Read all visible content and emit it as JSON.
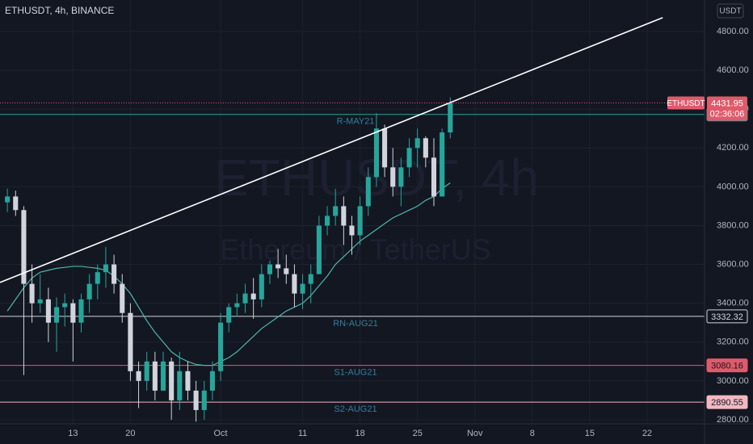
{
  "header": {
    "title": "ETHUSDT, 4h, BINANCE",
    "currency": "USDT"
  },
  "chart_data": {
    "type": "candlestick",
    "watermark": "ETHUSDT, 4h",
    "watermark_subtitle": "Ethereum / TetherUS",
    "up_color": "#26a69a",
    "down_color": "#d1d4dc",
    "x": [
      248,
      249,
      250,
      251,
      252,
      253,
      254,
      255,
      256,
      257,
      258,
      259,
      260,
      261,
      262,
      263,
      264,
      265,
      266,
      267,
      268,
      269,
      270,
      271,
      272,
      273,
      274,
      275,
      276,
      277,
      278,
      279,
      280,
      281,
      282,
      283,
      284,
      285,
      286,
      287,
      288,
      289,
      290,
      291,
      292,
      293,
      294,
      295,
      296,
      297,
      298,
      299,
      300,
      301,
      302
    ],
    "open": [
      3920,
      3950,
      3880,
      3500,
      3400,
      3420,
      3300,
      3380,
      3400,
      3300,
      3420,
      3500,
      3560,
      3600,
      3500,
      3350,
      3050,
      3000,
      3100,
      2950,
      3100,
      2900,
      3050,
      2950,
      2850,
      2950,
      3050,
      3300,
      3380,
      3400,
      3450,
      3420,
      3550,
      3600,
      3580,
      3550,
      3450,
      3500,
      3550,
      3800,
      3850,
      3900,
      3800,
      3750,
      3900,
      4050,
      4300,
      4100,
      4000,
      4100,
      4200,
      4250,
      4150,
      3950,
      4280
    ],
    "high": [
      3990,
      3980,
      3900,
      3600,
      3550,
      3480,
      3430,
      3450,
      3420,
      3450,
      3550,
      3600,
      3690,
      3650,
      3550,
      3400,
      3100,
      3150,
      3150,
      3150,
      3120,
      3150,
      3100,
      3000,
      3000,
      3100,
      3350,
      3400,
      3450,
      3500,
      3530,
      3600,
      3620,
      3680,
      3650,
      3600,
      3550,
      3600,
      3850,
      3900,
      3990,
      3950,
      3850,
      3950,
      4100,
      4380,
      4320,
      4200,
      4150,
      4250,
      4300,
      4260,
      4250,
      4300,
      4460
    ],
    "low": [
      3870,
      3850,
      3030,
      3300,
      3350,
      3200,
      3150,
      3280,
      3100,
      3250,
      3350,
      3420,
      3480,
      3450,
      3300,
      3000,
      2860,
      2950,
      2900,
      2950,
      2800,
      2850,
      2900,
      2790,
      2800,
      2900,
      3000,
      3250,
      3330,
      3350,
      3320,
      3380,
      3500,
      3530,
      3500,
      3380,
      3370,
      3400,
      3550,
      3750,
      3800,
      3700,
      3650,
      3700,
      3850,
      4000,
      4050,
      3950,
      3900,
      4050,
      4100,
      4100,
      3900,
      3950,
      4250
    ],
    "close": [
      3950,
      3880,
      3500,
      3400,
      3420,
      3300,
      3380,
      3400,
      3300,
      3420,
      3500,
      3560,
      3600,
      3500,
      3350,
      3050,
      3000,
      3100,
      2950,
      3100,
      2900,
      3050,
      2950,
      2850,
      2950,
      3050,
      3300,
      3380,
      3400,
      3450,
      3420,
      3550,
      3600,
      3580,
      3550,
      3450,
      3500,
      3550,
      3800,
      3850,
      3900,
      3800,
      3750,
      3900,
      4050,
      4300,
      4100,
      4000,
      4100,
      4200,
      4250,
      4150,
      3950,
      4280,
      4432
    ],
    "moving_average": {
      "color": "#4db6ac",
      "values": [
        3360,
        3420,
        3480,
        3530,
        3560,
        3570,
        3580,
        3585,
        3590,
        3590,
        3585,
        3580,
        3570,
        3540,
        3500,
        3450,
        3380,
        3310,
        3250,
        3200,
        3150,
        3120,
        3100,
        3085,
        3080,
        3080,
        3100,
        3120,
        3150,
        3190,
        3230,
        3270,
        3300,
        3330,
        3360,
        3380,
        3400,
        3440,
        3490,
        3540,
        3600,
        3640,
        3680,
        3720,
        3750,
        3780,
        3810,
        3840,
        3860,
        3880,
        3900,
        3930,
        3950,
        3990,
        4020
      ]
    },
    "trendline": {
      "color": "#ffffff",
      "x": [
        247.1,
        327.9
      ],
      "y": [
        3507,
        4871
      ]
    },
    "levels": [
      {
        "name": "R-MAY21",
        "value": 4372.72,
        "color": "#26a69a"
      },
      {
        "name": "RN-AUG21",
        "value": 3332.32,
        "color": "#d1d4dc"
      },
      {
        "name": "S1-AUG21",
        "value": 3080.16,
        "color": "#e05a6a"
      },
      {
        "name": "S2-AUG21",
        "value": 2890.55,
        "color": "#f2b8c0"
      }
    ],
    "last_price": {
      "symbol": "ETHUSDT",
      "value": 4431.95,
      "countdown": "02:36:06",
      "color": "#e05a6a"
    },
    "xlim": [
      247.1,
      333
    ],
    "xticks": [
      {
        "value": 256,
        "label": "13"
      },
      {
        "value": 263,
        "label": "20"
      },
      {
        "value": 274,
        "label": "Oct"
      },
      {
        "value": 284,
        "label": "11"
      },
      {
        "value": 291,
        "label": "18"
      },
      {
        "value": 298,
        "label": "25"
      },
      {
        "value": 305,
        "label": "Nov"
      },
      {
        "value": 312,
        "label": "8"
      },
      {
        "value": 319,
        "label": "15"
      },
      {
        "value": 326,
        "label": "22"
      }
    ],
    "ylim": [
      2779,
      4962
    ],
    "yticks": [
      {
        "value": 2800,
        "label": "2800.00"
      },
      {
        "value": 3000,
        "label": "3000.00"
      },
      {
        "value": 3200,
        "label": "3200.00"
      },
      {
        "value": 3400,
        "label": "3400.00"
      },
      {
        "value": 3600,
        "label": "3600.00"
      },
      {
        "value": 3800,
        "label": "3800.00"
      },
      {
        "value": 4000,
        "label": "4000.00"
      },
      {
        "value": 4200,
        "label": "4200.00"
      },
      {
        "value": 4400,
        "label": "4400.00"
      },
      {
        "value": 4600,
        "label": "4600.00"
      },
      {
        "value": 4800,
        "label": "4800.00"
      }
    ],
    "grid": true
  }
}
